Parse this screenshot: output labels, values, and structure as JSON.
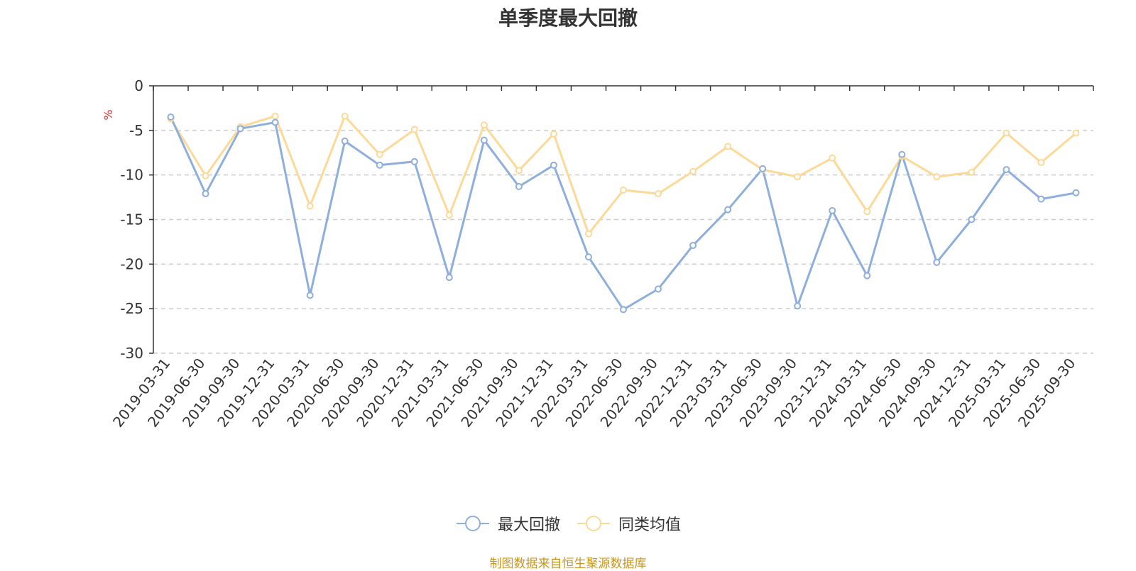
{
  "chart_data": {
    "type": "line",
    "title": "单季度最大回撤",
    "ylabel": "%",
    "ylim": [
      -30,
      0
    ],
    "yticks": [
      0,
      -5,
      -10,
      -15,
      -20,
      -25,
      -30
    ],
    "grid": true,
    "legend_position": "bottom",
    "categories": [
      "2019-03-31",
      "2019-06-30",
      "2019-09-30",
      "2019-12-31",
      "2020-03-31",
      "2020-06-30",
      "2020-09-30",
      "2020-12-31",
      "2021-03-31",
      "2021-06-30",
      "2021-09-30",
      "2021-12-31",
      "2022-03-31",
      "2022-06-30",
      "2022-09-30",
      "2022-12-31",
      "2023-03-31",
      "2023-06-30",
      "2023-09-30",
      "2023-12-31",
      "2024-03-31",
      "2024-06-30",
      "2024-09-30",
      "2024-12-31",
      "2025-03-31",
      "2025-06-30",
      "2025-09-30"
    ],
    "series": [
      {
        "name": "最大回撤",
        "color": "#8eaedb",
        "values": [
          -3.5,
          -12.1,
          -4.8,
          -4.1,
          -23.5,
          -6.2,
          -8.9,
          -8.5,
          -21.5,
          -6.1,
          -11.3,
          -8.9,
          -19.2,
          -25.1,
          -22.8,
          -17.9,
          -13.9,
          -9.3,
          -24.7,
          -14.0,
          -21.3,
          -7.7,
          -19.8,
          -15.0,
          -9.4,
          -12.7,
          -12.0
        ]
      },
      {
        "name": "同类均值",
        "color": "#fcd997",
        "values": [
          -3.7,
          -10.1,
          -4.6,
          -3.4,
          -13.5,
          -3.4,
          -7.7,
          -4.9,
          -14.5,
          -4.4,
          -9.5,
          -5.4,
          -16.6,
          -11.7,
          -12.1,
          -9.6,
          -6.8,
          -9.4,
          -10.2,
          -8.1,
          -14.1,
          -7.9,
          -10.2,
          -9.7,
          -5.3,
          -8.6,
          -5.3
        ]
      }
    ]
  },
  "footer": {
    "source": "制图数据来自恒生聚源数据库"
  }
}
